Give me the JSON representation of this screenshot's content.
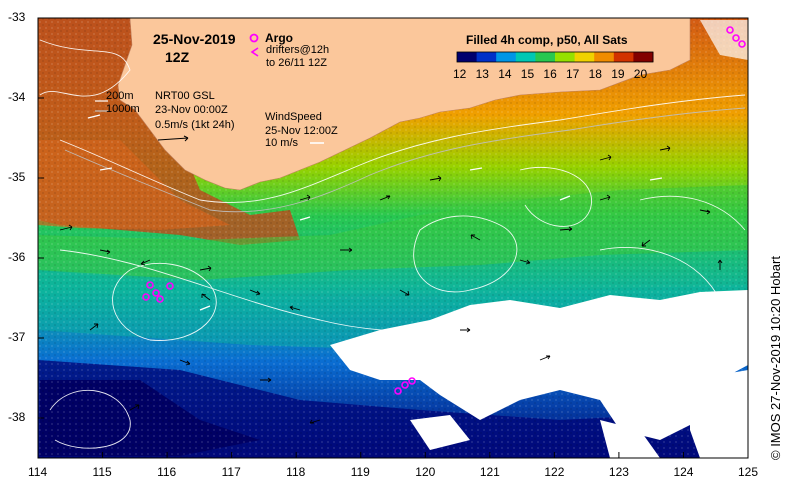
{
  "title": {
    "date": "25-Nov-2019",
    "time": "12Z"
  },
  "legend": {
    "argo_label": "Argo",
    "drifters_line1": "drifters@12h",
    "drifters_line2": "to 26/11 12Z",
    "isobath_200": "200m",
    "isobath_1000": "1000m",
    "current_line1": "NRT00 GSL",
    "current_line2": "23-Nov 00:00Z",
    "current_line3": "0.5m/s (1kt 24h)",
    "wind_line1": "WindSpeed",
    "wind_line2": "25-Nov 12:00Z",
    "wind_line3": "10 m/s"
  },
  "colorbar": {
    "title": "Filled 4h comp, p50, All Sats",
    "ticks": [
      "12",
      "13",
      "14",
      "15",
      "16",
      "17",
      "18",
      "19",
      "20"
    ],
    "colors": [
      "#00006e",
      "#0030c8",
      "#0096e6",
      "#00c8b4",
      "#28c850",
      "#96e100",
      "#f0d200",
      "#f08c00",
      "#d23200",
      "#820000"
    ]
  },
  "axes": {
    "x_ticks": [
      "114",
      "115",
      "116",
      "117",
      "118",
      "119",
      "120",
      "121",
      "122",
      "123",
      "124",
      "125"
    ],
    "y_ticks": [
      "-33",
      "-34",
      "-35",
      "-36",
      "-37",
      "-38"
    ]
  },
  "credit": "© IMOS 27-Nov-2019 10:20 Hobart",
  "colors": {
    "land": "#fbc79b",
    "argo": "#ff00ff",
    "cloud": "#ffffff"
  }
}
